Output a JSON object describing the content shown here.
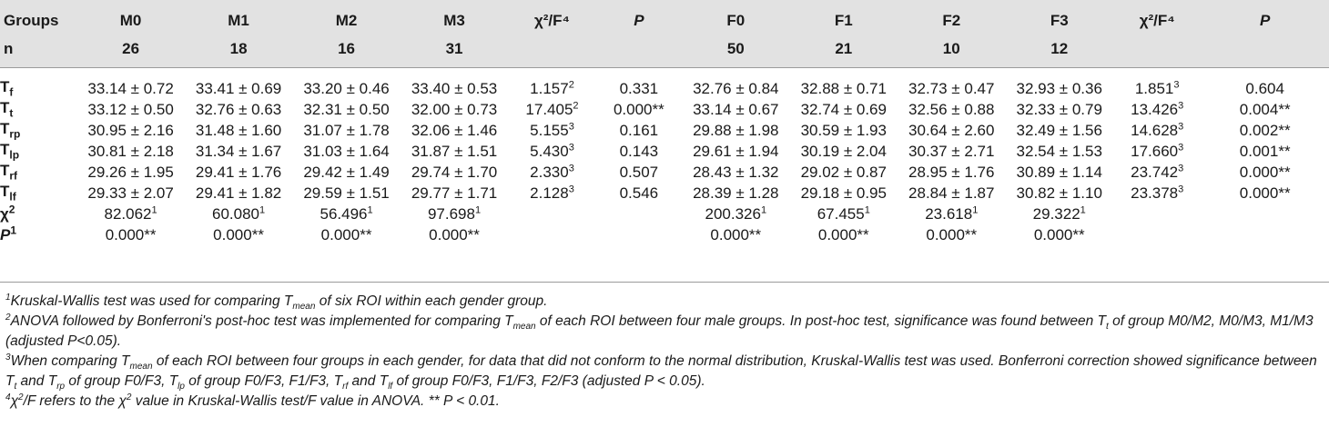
{
  "table": {
    "header_row1": [
      "Groups",
      "M0",
      "M1",
      "M2",
      "M3",
      "χ²/F⁴",
      "P",
      "F0",
      "F1",
      "F2",
      "F3",
      "χ²/F⁴",
      "P"
    ],
    "header_row2": [
      "n",
      "26",
      "18",
      "16",
      "31",
      "",
      "",
      "50",
      "21",
      "10",
      "12",
      "",
      ""
    ],
    "rows": [
      {
        "base": "T",
        "sub": "f",
        "cells": [
          "33.14 ± 0.72",
          "33.41 ± 0.69",
          "33.20 ± 0.46",
          "33.40 ± 0.53"
        ],
        "stat": "1.157",
        "stat_sup": "2",
        "p": "0.331",
        "fcells": [
          "32.76 ± 0.84",
          "32.88 ± 0.71",
          "32.73 ± 0.47",
          "32.93 ± 0.36"
        ],
        "fstat": "1.851",
        "fstat_sup": "3",
        "fp": "0.604"
      },
      {
        "base": "T",
        "sub": "t",
        "cells": [
          "33.12 ± 0.50",
          "32.76 ± 0.63",
          "32.31 ± 0.50",
          "32.00 ± 0.73"
        ],
        "stat": "17.405",
        "stat_sup": "2",
        "p": "0.000**",
        "fcells": [
          "33.14 ± 0.67",
          "32.74 ± 0.69",
          "32.56 ± 0.88",
          "32.33 ± 0.79"
        ],
        "fstat": "13.426",
        "fstat_sup": "3",
        "fp": "0.004**"
      },
      {
        "base": "T",
        "sub": "rp",
        "cells": [
          "30.95 ± 2.16",
          "31.48 ± 1.60",
          "31.07 ± 1.78",
          "32.06 ± 1.46"
        ],
        "stat": "5.155",
        "stat_sup": "3",
        "p": "0.161",
        "fcells": [
          "29.88 ± 1.98",
          "30.59 ± 1.93",
          "30.64 ± 2.60",
          "32.49 ± 1.56"
        ],
        "fstat": "14.628",
        "fstat_sup": "3",
        "fp": "0.002**"
      },
      {
        "base": "T",
        "sub": "lp",
        "cells": [
          "30.81 ± 2.18",
          "31.34 ± 1.67",
          "31.03 ± 1.64",
          "31.87 ± 1.51"
        ],
        "stat": "5.430",
        "stat_sup": "3",
        "p": "0.143",
        "fcells": [
          "29.61 ± 1.94",
          "30.19 ± 2.04",
          "30.37 ± 2.71",
          "32.54 ± 1.53"
        ],
        "fstat": "17.660",
        "fstat_sup": "3",
        "fp": "0.001**"
      },
      {
        "base": "T",
        "sub": "rf",
        "cells": [
          "29.26 ± 1.95",
          "29.41 ± 1.76",
          "29.42 ± 1.49",
          "29.74 ± 1.70"
        ],
        "stat": "2.330",
        "stat_sup": "3",
        "p": "0.507",
        "fcells": [
          "28.43 ± 1.32",
          "29.02 ± 0.87",
          "28.95 ± 1.76",
          "30.89 ± 1.14"
        ],
        "fstat": "23.742",
        "fstat_sup": "3",
        "fp": "0.000**"
      },
      {
        "base": "T",
        "sub": "lf",
        "cells": [
          "29.33 ± 2.07",
          "29.41 ± 1.82",
          "29.59 ± 1.51",
          "29.77 ± 1.71"
        ],
        "stat": "2.128",
        "stat_sup": "3",
        "p": "0.546",
        "fcells": [
          "28.39 ± 1.28",
          "29.18 ± 0.95",
          "28.84 ± 1.87",
          "30.82 ± 1.10"
        ],
        "fstat": "23.378",
        "fstat_sup": "3",
        "fp": "0.000**"
      }
    ],
    "chi_row": {
      "label": "χ",
      "label_sup": "2",
      "m": [
        "82.062",
        "60.080",
        "56.496",
        "97.698"
      ],
      "f": [
        "200.326",
        "67.455",
        "23.618",
        "29.322"
      ],
      "sup": "1"
    },
    "p_row": {
      "label": "P",
      "label_sup": "1",
      "m": [
        "0.000**",
        "0.000**",
        "0.000**",
        "0.000**"
      ],
      "f": [
        "0.000**",
        "0.000**",
        "0.000**",
        "0.000**"
      ]
    }
  },
  "notes": [
    {
      "sup": "1",
      "parts": [
        "Kruskal-Wallis test was used for comparing T",
        "mean",
        " of six ROI within each gender group."
      ]
    },
    {
      "sup": "2",
      "parts": [
        "ANOVA followed by Bonferroni's post-hoc test was implemented for comparing T",
        "mean",
        " of each ROI between four male groups. In post-hoc test, significance was found between T",
        "t",
        " of group M0/M2, M0/M3, M1/M3 (adjusted P<0.05)."
      ]
    },
    {
      "sup": "3",
      "parts": [
        "When comparing T",
        "mean",
        " of each ROI between four groups in each gender, for data that did not conform to the normal distribution, Kruskal-Wallis test was used. Bonferroni correction showed significance between T",
        "t",
        " and T",
        "rp",
        " of group F0/F3, T",
        "lp",
        " of group F0/F3, F1/F3, T",
        "rf",
        " and T",
        "lf",
        " of group F0/F3, F1/F3, F2/F3 (adjusted P < 0.05)."
      ]
    },
    {
      "sup": "4",
      "parts": [
        "χ",
        "2",
        "/F refers to the χ",
        "2",
        " value in Kruskal-Wallis test/F value in ANOVA. ** P < 0.01."
      ]
    }
  ]
}
